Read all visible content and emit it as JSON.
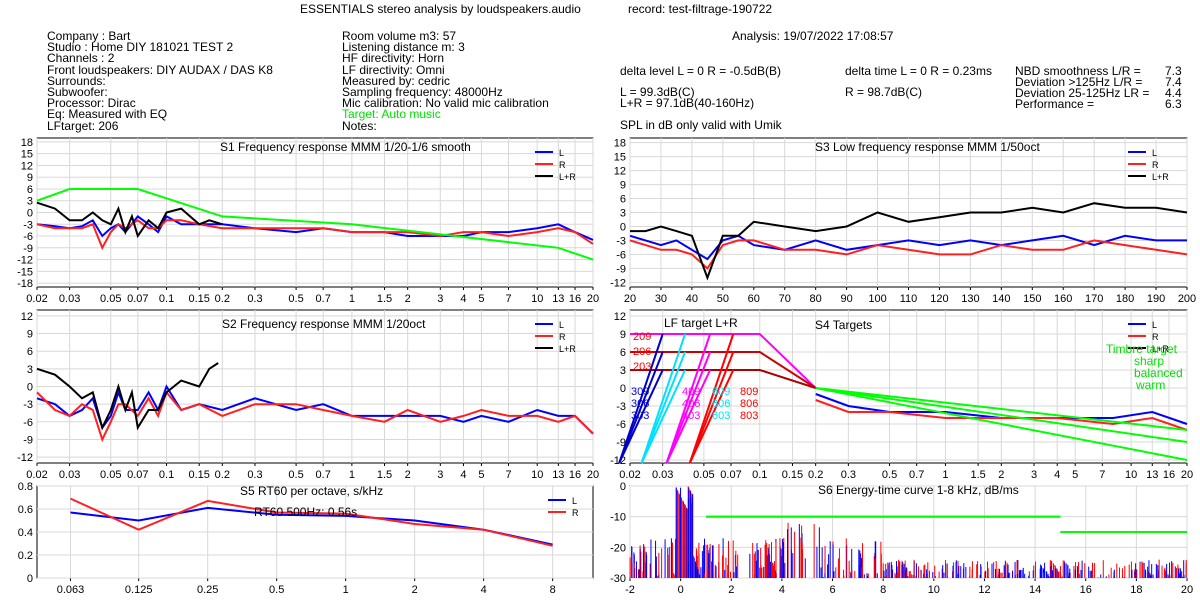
{
  "header": {
    "title": "ESSENTIALS stereo analysis by loudspeakers.audio",
    "record": "record: test-filtrage-190722",
    "analysis": "Analysis: 19/07/2022 17:08:57"
  },
  "info_left": [
    "Company : Bart",
    "Studio : Home DIY 181021 TEST 2",
    "Channels : 2",
    "Front loudspeakers: DIY AUDAX / DAS K8",
    "Surrounds:",
    "Subwoofer:",
    "Processor: Dirac",
    "Eq: Measured with EQ",
    "LFtarget: 206"
  ],
  "info_mid": [
    "Room volume m3: 57",
    "Listening distance m: 3",
    "HF directivity: Horn",
    "LF directivity: Omni",
    "Measured by: cedric",
    "Sampling frequency: 48000Hz",
    "Mic calibration: No valid mic calibration"
  ],
  "info_mid_green": "Target: Auto music",
  "info_mid_notes": "Notes:",
  "stats": {
    "delta_level": "delta level L = 0  R = -0.5dB(B)",
    "delta_time": "delta time  L = 0  R = 0.23ms",
    "l_db": "L =      99.3dB(C)",
    "lr_db": "L+R = 97.1dB(40-160Hz)",
    "r_db": "R =      98.7dB(C)",
    "spl_note": "SPL in dB only valid with Umik",
    "nbd_label": "NBD smoothness L/R =",
    "nbd_value": "7.3",
    "dev125_label": "Deviation >125Hz L/R =",
    "dev125_value": "7.4",
    "dev25_label": "Deviation 25-125Hz LR =",
    "dev25_value": "4.4",
    "perf_label": "Performance =",
    "perf_value": "6.3"
  },
  "chart_data": [
    {
      "id": "s1",
      "type": "line",
      "title": "S1  Frequency response MMM 1/20-1/6 smooth",
      "x_scale": "log",
      "xlim": [
        0.02,
        20
      ],
      "ylim": [
        -19,
        19
      ],
      "x_ticks": [
        "0.02",
        "0.03",
        "0.05",
        "0.07",
        "0.1",
        "0.15",
        "0.2",
        "0.3",
        "0.5",
        "0.7",
        "1",
        "1.5",
        "2",
        "3",
        "4",
        "5",
        "7",
        "10",
        "13",
        "16",
        "20"
      ],
      "y_ticks": [
        "18",
        "15",
        "12",
        "9",
        "6",
        "3",
        "0",
        "-3",
        "-6",
        "-9",
        "-12",
        "-15",
        "-18"
      ],
      "legend": [
        "L",
        "R",
        "L+R"
      ],
      "series": [
        {
          "name": "L",
          "color": "#0000ff",
          "x": [
            0.02,
            0.025,
            0.03,
            0.035,
            0.04,
            0.045,
            0.05,
            0.055,
            0.06,
            0.07,
            0.08,
            0.09,
            0.1,
            0.12,
            0.15,
            0.2,
            0.3,
            0.5,
            0.7,
            1,
            1.5,
            2,
            3,
            4,
            5,
            7,
            10,
            13,
            16,
            20
          ],
          "y": [
            -3,
            -3.5,
            -4,
            -3.5,
            -2,
            -6,
            -4,
            -3,
            -5,
            -1,
            -3,
            -5,
            -1,
            -3,
            -3,
            -3,
            -4,
            -5,
            -4,
            -5,
            -5,
            -6,
            -6,
            -6,
            -5,
            -5,
            -4,
            -3,
            -5,
            -7
          ]
        },
        {
          "name": "R",
          "color": "#ff2020",
          "x": [
            0.02,
            0.025,
            0.03,
            0.035,
            0.04,
            0.045,
            0.05,
            0.055,
            0.06,
            0.07,
            0.08,
            0.09,
            0.1,
            0.12,
            0.15,
            0.2,
            0.3,
            0.5,
            0.7,
            1,
            1.5,
            2,
            3,
            4,
            5,
            7,
            10,
            13,
            16,
            20
          ],
          "y": [
            -3,
            -4,
            -4,
            -4,
            -3,
            -9,
            -5,
            -3,
            -4,
            -2,
            -4,
            -4,
            -2,
            -2,
            -3,
            -4,
            -4,
            -4,
            -4,
            -5,
            -5,
            -5,
            -6,
            -5,
            -5,
            -6,
            -5,
            -4,
            -5,
            -8
          ]
        },
        {
          "name": "L+R",
          "color": "#000000",
          "x": [
            0.02,
            0.025,
            0.03,
            0.035,
            0.04,
            0.045,
            0.05,
            0.055,
            0.06,
            0.065,
            0.07,
            0.08,
            0.09,
            0.1,
            0.12,
            0.15,
            0.17,
            0.2
          ],
          "y": [
            2.5,
            1,
            -2,
            -2,
            0,
            -2,
            -3,
            1,
            -5,
            -1,
            -6,
            -2,
            -4,
            0,
            1,
            -3,
            -2,
            -3
          ]
        },
        {
          "name": "",
          "color": "#00ff00",
          "x": [
            0.02,
            0.03,
            0.07,
            0.2,
            1,
            13,
            20
          ],
          "y": [
            3,
            6,
            6,
            -1,
            -3,
            -9,
            -12
          ]
        }
      ]
    },
    {
      "id": "s2",
      "type": "line",
      "title": "S2  Frequency response MMM 1/20oct",
      "x_scale": "log",
      "xlim": [
        0.02,
        20
      ],
      "ylim": [
        -13,
        13
      ],
      "x_ticks": [
        "0.02",
        "0.03",
        "0.05",
        "0.07",
        "0.1",
        "0.15",
        "0.2",
        "0.3",
        "0.5",
        "0.7",
        "1",
        "1.5",
        "2",
        "3",
        "4",
        "5",
        "7",
        "10",
        "13",
        "16",
        "20"
      ],
      "y_ticks": [
        "12",
        "9",
        "6",
        "3",
        "0",
        "-3",
        "-6",
        "-9",
        "-12"
      ],
      "legend": [
        "L",
        "R",
        "L+R"
      ],
      "series": [
        {
          "name": "L",
          "color": "#0000ff",
          "x": [
            0.02,
            0.025,
            0.03,
            0.035,
            0.04,
            0.045,
            0.05,
            0.055,
            0.06,
            0.07,
            0.08,
            0.09,
            0.1,
            0.12,
            0.15,
            0.2,
            0.3,
            0.5,
            0.7,
            1,
            1.5,
            2,
            3,
            4,
            5,
            7,
            10,
            13,
            16,
            20
          ],
          "y": [
            -2,
            -3,
            -5,
            -4,
            -2,
            -7,
            -5,
            -1,
            -4,
            -4,
            -1,
            -4,
            0,
            -4,
            -3,
            -4,
            -2,
            -4,
            -3,
            -5,
            -5,
            -5,
            -5,
            -6,
            -5,
            -6,
            -4,
            -5,
            -5,
            -8
          ]
        },
        {
          "name": "R",
          "color": "#ff2020",
          "x": [
            0.02,
            0.025,
            0.03,
            0.035,
            0.04,
            0.045,
            0.05,
            0.055,
            0.06,
            0.07,
            0.08,
            0.09,
            0.1,
            0.12,
            0.15,
            0.2,
            0.3,
            0.5,
            0.7,
            1,
            1.5,
            2,
            3,
            4,
            5,
            7,
            10,
            13,
            16,
            20
          ],
          "y": [
            -1,
            -4,
            -5,
            -3,
            -4,
            -9,
            -6,
            -3,
            -3,
            -5,
            -2,
            -5,
            -1,
            -4,
            -3,
            -5,
            -3,
            -3,
            -4,
            -5,
            -6,
            -4,
            -6,
            -5,
            -4,
            -5,
            -5,
            -6,
            -5,
            -8
          ]
        },
        {
          "name": "L+R",
          "color": "#000000",
          "x": [
            0.02,
            0.025,
            0.03,
            0.035,
            0.04,
            0.045,
            0.05,
            0.055,
            0.06,
            0.065,
            0.07,
            0.08,
            0.09,
            0.1,
            0.12,
            0.15,
            0.17,
            0.19
          ],
          "y": [
            3,
            2,
            0,
            -2,
            -1,
            -7,
            -4,
            0,
            -4,
            -1,
            -7,
            -4,
            -4,
            -1,
            1,
            0,
            3,
            4
          ]
        }
      ]
    },
    {
      "id": "s3",
      "type": "line",
      "title": "S3  Low frequency response MMM 1/50oct",
      "x_scale": "linear",
      "xlim": [
        20,
        200
      ],
      "ylim": [
        -13,
        19
      ],
      "x_ticks": [
        "20",
        "30",
        "40",
        "50",
        "60",
        "70",
        "80",
        "90",
        "100",
        "110",
        "120",
        "130",
        "140",
        "150",
        "160",
        "170",
        "180",
        "190",
        "200"
      ],
      "y_ticks": [
        "18",
        "15",
        "12",
        "9",
        "6",
        "3",
        "0",
        "-3",
        "-6",
        "-9",
        "-12"
      ],
      "legend": [
        "L",
        "R",
        "L+R"
      ],
      "series": [
        {
          "name": "L",
          "color": "#0000ff",
          "x": [
            20,
            25,
            30,
            35,
            40,
            45,
            50,
            55,
            60,
            70,
            80,
            90,
            100,
            110,
            120,
            130,
            140,
            150,
            160,
            170,
            180,
            190,
            200
          ],
          "y": [
            -2,
            -3,
            -4,
            -3,
            -5,
            -7,
            -3,
            -2,
            -4,
            -5,
            -3,
            -5,
            -4,
            -3,
            -4,
            -3,
            -4,
            -3,
            -2,
            -4,
            -2,
            -3,
            -3
          ]
        },
        {
          "name": "R",
          "color": "#ff2020",
          "x": [
            20,
            25,
            30,
            35,
            40,
            45,
            50,
            55,
            60,
            70,
            80,
            90,
            100,
            110,
            120,
            130,
            140,
            150,
            160,
            170,
            180,
            190,
            200
          ],
          "y": [
            -3,
            -4,
            -5,
            -5,
            -6,
            -9,
            -4,
            -3,
            -3,
            -5,
            -5,
            -6,
            -4,
            -5,
            -6,
            -6,
            -4,
            -5,
            -5,
            -3,
            -4,
            -5,
            -6
          ]
        },
        {
          "name": "L+R",
          "color": "#000000",
          "x": [
            20,
            25,
            30,
            35,
            40,
            45,
            50,
            55,
            60,
            70,
            80,
            90,
            100,
            110,
            120,
            130,
            140,
            150,
            160,
            170,
            180,
            190,
            200
          ],
          "y": [
            -1,
            -1,
            0,
            -1,
            -2,
            -11,
            -2,
            -2,
            1,
            0,
            -1,
            0,
            3,
            1,
            2,
            3,
            3,
            4,
            3,
            5,
            4,
            4,
            3
          ]
        }
      ]
    },
    {
      "id": "s4",
      "type": "line",
      "title": "S4  Targets",
      "x_scale": "log",
      "xlim": [
        0.02,
        20
      ],
      "ylim": [
        -12.5,
        13
      ],
      "x_ticks": [
        "0.02",
        "0.03",
        "0.05",
        "0.07",
        "0.1",
        "0.15",
        "0.2",
        "0.3",
        "0.5",
        "0.7",
        "1",
        "1.5",
        "2",
        "3",
        "4",
        "5",
        "7",
        "10",
        "13",
        "16",
        "20"
      ],
      "y_ticks": [
        "12",
        "9",
        "6",
        "3",
        "0",
        "-3",
        "-6",
        "-9",
        "-12"
      ],
      "legend": [
        "L",
        "R",
        "L+R"
      ],
      "lf_label": "LF target L+R",
      "target_labels_red": [
        "209",
        "206",
        "203"
      ],
      "target_labels_left": [
        "309",
        "306",
        "303"
      ],
      "target_labels_magenta": [
        "409",
        "406",
        "403"
      ],
      "target_labels_cyan": [
        "609",
        "606",
        "603"
      ],
      "target_labels_dred": [
        "809",
        "806",
        "803"
      ],
      "timbre": {
        "title": "Timbre target",
        "items": [
          "sharp",
          "balanced",
          "warm"
        ]
      },
      "series": [
        {
          "name": "L",
          "color": "#0000ff",
          "x": [
            0.2,
            0.3,
            0.5,
            1,
            2,
            4,
            8,
            13,
            20
          ],
          "y": [
            -1,
            -3,
            -4,
            -4,
            -5,
            -5,
            -5,
            -4,
            -6
          ]
        },
        {
          "name": "R",
          "color": "#ff2020",
          "x": [
            0.2,
            0.3,
            0.5,
            1,
            2,
            4,
            8,
            13,
            20
          ],
          "y": [
            -2,
            -4,
            -4,
            -5,
            -5,
            -5,
            -6,
            -5,
            -7
          ]
        }
      ]
    },
    {
      "id": "s5",
      "type": "line",
      "title": "S5  RT60 per octave, s/kHz",
      "annotation": "RT60 500Hz: 0.56s",
      "x_scale": "log",
      "xlim": [
        0.045,
        12
      ],
      "ylim": [
        0,
        0.8
      ],
      "x_ticks": [
        "0.063",
        "0.125",
        "0.25",
        "0.5",
        "1",
        "2",
        "4",
        "8"
      ],
      "y_ticks": [
        "0.8",
        "0.6",
        "0.4",
        "0.2",
        "0"
      ],
      "legend": [
        "L",
        "R"
      ],
      "series": [
        {
          "name": "L",
          "color": "#0000ff",
          "x": [
            0.063,
            0.125,
            0.25,
            0.5,
            1,
            2,
            4,
            8
          ],
          "y": [
            0.57,
            0.5,
            0.61,
            0.55,
            0.54,
            0.5,
            0.42,
            0.29
          ]
        },
        {
          "name": "R",
          "color": "#ff2020",
          "x": [
            0.063,
            0.125,
            0.25,
            0.5,
            1,
            2,
            4,
            8
          ],
          "y": [
            0.69,
            0.42,
            0.67,
            0.57,
            0.56,
            0.47,
            0.42,
            0.28
          ]
        }
      ]
    },
    {
      "id": "s6",
      "type": "line",
      "title": "S6  Energy-time curve 1-8 kHz, dB/ms",
      "x_scale": "linear",
      "xlim": [
        -2,
        20
      ],
      "ylim": [
        -30,
        0
      ],
      "x_ticks": [
        "-2",
        "0",
        "2",
        "4",
        "6",
        "8",
        "10",
        "12",
        "14",
        "16",
        "18",
        "20"
      ],
      "y_ticks": [
        "0",
        "-10",
        "-20",
        "-30"
      ],
      "series": [
        {
          "name": "",
          "color": "#00ff00",
          "x": [
            1,
            15
          ],
          "y": [
            -10,
            -10
          ]
        },
        {
          "name": "",
          "color": "#00ff00",
          "x": [
            15,
            20
          ],
          "y": [
            -15,
            -15
          ]
        }
      ]
    }
  ],
  "colors": {
    "L": "#0000ff",
    "R": "#ff2020",
    "LR": "#000000",
    "target": "#00ff00"
  }
}
